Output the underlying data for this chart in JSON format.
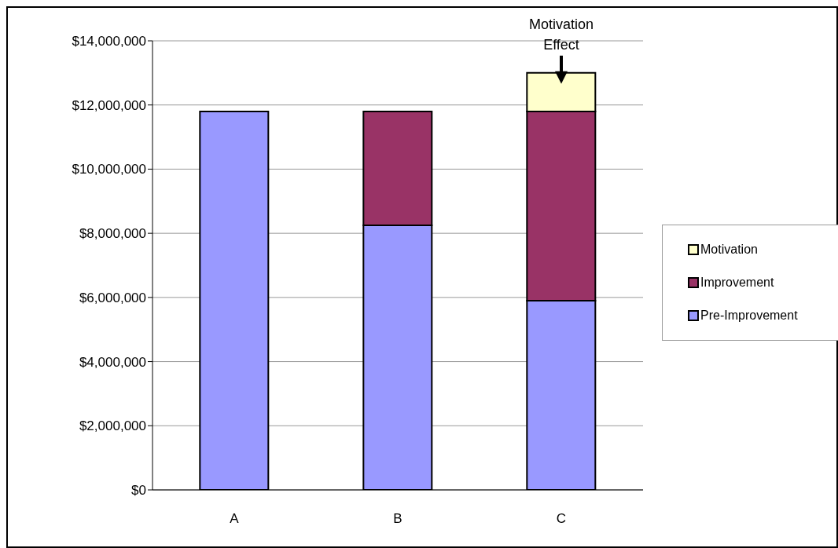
{
  "chart_data": {
    "type": "bar",
    "stacked": true,
    "categories": [
      "A",
      "B",
      "C"
    ],
    "series": [
      {
        "name": "Pre-Improvement",
        "color": "#9999ff",
        "values": [
          11800000,
          8250000,
          5900000
        ]
      },
      {
        "name": "Improvement",
        "color": "#993366",
        "values": [
          null,
          3550000,
          5900000
        ]
      },
      {
        "name": "Motivation",
        "color": "#ffffcc",
        "values": [
          null,
          null,
          1200000
        ]
      }
    ],
    "ylim": [
      0,
      14000000
    ],
    "yticks": [
      {
        "value": 0,
        "label": "$0"
      },
      {
        "value": 2000000,
        "label": "$2,000,000"
      },
      {
        "value": 4000000,
        "label": "$4,000,000"
      },
      {
        "value": 6000000,
        "label": "$6,000,000"
      },
      {
        "value": 8000000,
        "label": "$8,000,000"
      },
      {
        "value": 10000000,
        "label": "$10,000,000"
      },
      {
        "value": 12000000,
        "label": "$12,000,000"
      },
      {
        "value": 14000000,
        "label": "$14,000,000"
      }
    ],
    "grid": "y",
    "legend": "right",
    "annotations": [
      {
        "text": "Motivation Effect",
        "x": "C",
        "y": 13000000
      }
    ]
  }
}
